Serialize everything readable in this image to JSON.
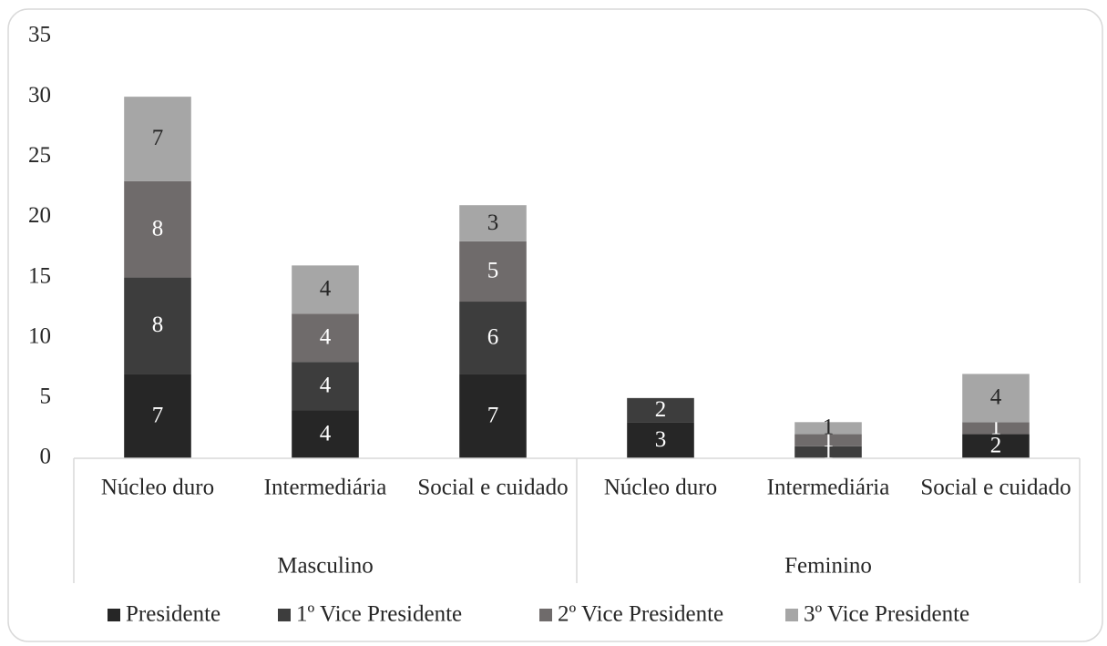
{
  "chart_data": {
    "type": "stacked_bar",
    "groups": [
      {
        "label": "Masculino",
        "categories": [
          "Núcleo duro",
          "Intermediária",
          "Social e cuidado"
        ]
      },
      {
        "label": "Feminino",
        "categories": [
          "Núcleo duro",
          "Intermediária",
          "Social e cuidado"
        ]
      }
    ],
    "series": [
      {
        "name": "Presidente",
        "color": "#262626",
        "label_color": "#ffffff",
        "values": [
          7,
          4,
          7,
          3,
          null,
          2
        ]
      },
      {
        "name": "1º Vice Presidente",
        "color": "#3d3d3d",
        "label_color": "#ffffff",
        "values": [
          8,
          4,
          6,
          2,
          1,
          null
        ]
      },
      {
        "name": "2º Vice Presidente",
        "color": "#6f6b6b",
        "label_color": "#ffffff",
        "values": [
          8,
          4,
          5,
          null,
          1,
          1
        ]
      },
      {
        "name": "3º Vice Presidente",
        "color": "#a6a6a6",
        "label_color": "#262626",
        "values": [
          7,
          4,
          3,
          null,
          1,
          4
        ]
      }
    ],
    "ylim": [
      0,
      35
    ],
    "yticks": [
      0,
      5,
      10,
      15,
      20,
      25,
      30,
      35
    ],
    "grid": false,
    "legend": "bottom"
  }
}
